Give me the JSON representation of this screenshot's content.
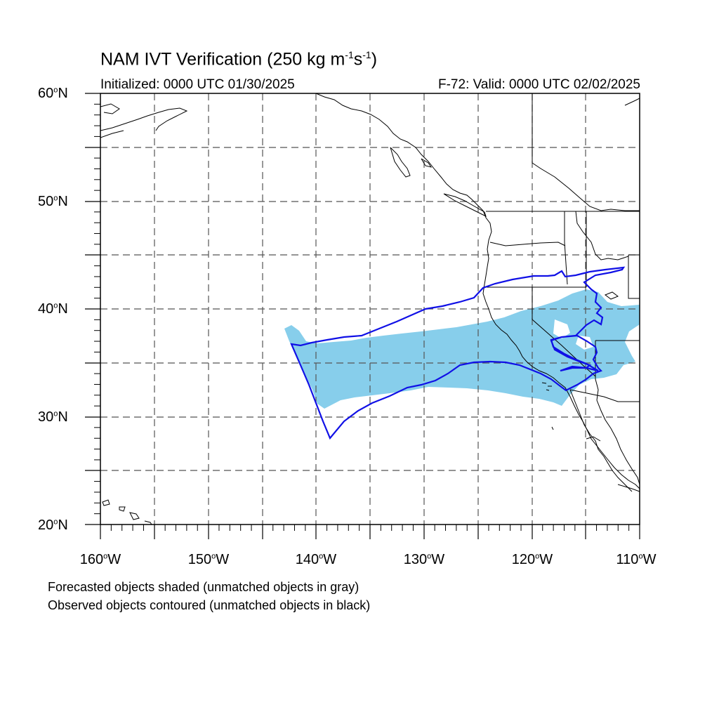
{
  "title": {
    "main": "NAM IVT Verification (250 kg m",
    "exp1": "-1",
    "mid": "s",
    "exp2": "-1",
    "end": ")"
  },
  "subtitle": {
    "initialized": "Initialized: 0000 UTC 01/30/2025",
    "valid": "F-72: Valid: 0000 UTC 02/02/2025"
  },
  "axes": {
    "lat_labels": [
      {
        "deg": "60",
        "hemi": "N"
      },
      {
        "deg": "50",
        "hemi": "N"
      },
      {
        "deg": "40",
        "hemi": "N"
      },
      {
        "deg": "30",
        "hemi": "N"
      },
      {
        "deg": "20",
        "hemi": "N"
      }
    ],
    "lon_labels": [
      {
        "deg": "160",
        "hemi": "W"
      },
      {
        "deg": "150",
        "hemi": "W"
      },
      {
        "deg": "140",
        "hemi": "W"
      },
      {
        "deg": "130",
        "hemi": "W"
      },
      {
        "deg": "120",
        "hemi": "W"
      },
      {
        "deg": "110",
        "hemi": "W"
      }
    ],
    "lat_range": [
      20,
      60
    ],
    "lon_range": [
      -160,
      -110
    ],
    "grid": "dashed, every 5 degrees"
  },
  "legend": {
    "line1": "Forecasted objects shaded (unmatched objects in gray)",
    "line2": "Observed objects contoured (unmatched objects in black)"
  },
  "colors": {
    "forecast_fill": "#87CEEB",
    "observed_contour": "#1010E6",
    "coastline": "#000000",
    "grid": "#555555"
  }
}
